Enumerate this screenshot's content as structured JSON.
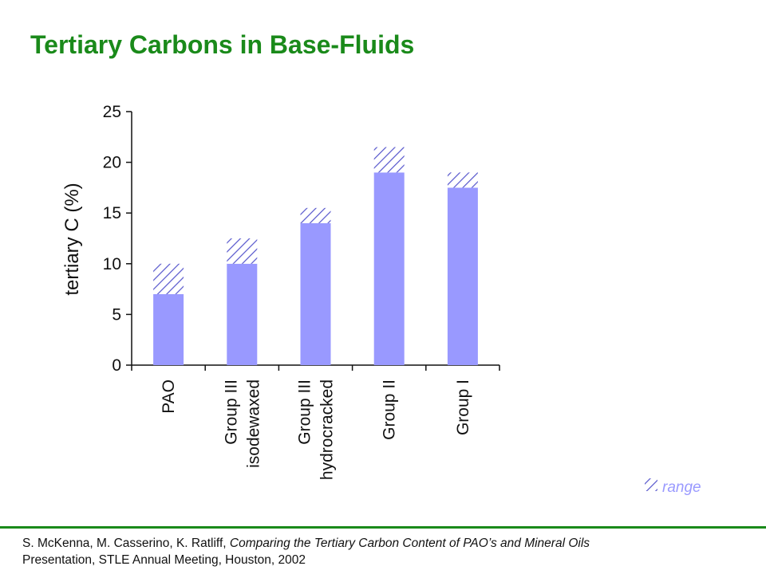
{
  "title": "Tertiary Carbons in Base-Fluids",
  "colors": {
    "title": "#1a8a1a",
    "bar": "#9999ff",
    "hatch": "#5555cc",
    "rule": "#1a8a1a"
  },
  "chart_data": {
    "type": "bar",
    "stacked": true,
    "ylabel": "tertiary C (%)",
    "ylim": [
      0,
      25
    ],
    "yticks": [
      0,
      5,
      10,
      15,
      20,
      25
    ],
    "categories": [
      [
        "PAO"
      ],
      [
        "Group III",
        "isodewaxed"
      ],
      [
        "Group III",
        "hydrocracked"
      ],
      [
        "Group II"
      ],
      [
        "Group I"
      ]
    ],
    "series": [
      {
        "values": [
          7,
          10,
          14,
          19,
          17.5
        ]
      },
      {
        "name": "range",
        "values": [
          3,
          2.5,
          1.5,
          2.5,
          1.5
        ]
      }
    ],
    "legend": {
      "label": "range",
      "position": "bottom-right"
    },
    "grid": false
  },
  "citation": {
    "authors": "S. McKenna, M. Casserino, K. Ratliff, ",
    "paper_title": "Comparing the Tertiary Carbon Content of PAO’s and Mineral Oils",
    "venue": "Presentation, STLE Annual Meeting, Houston, 2002"
  }
}
